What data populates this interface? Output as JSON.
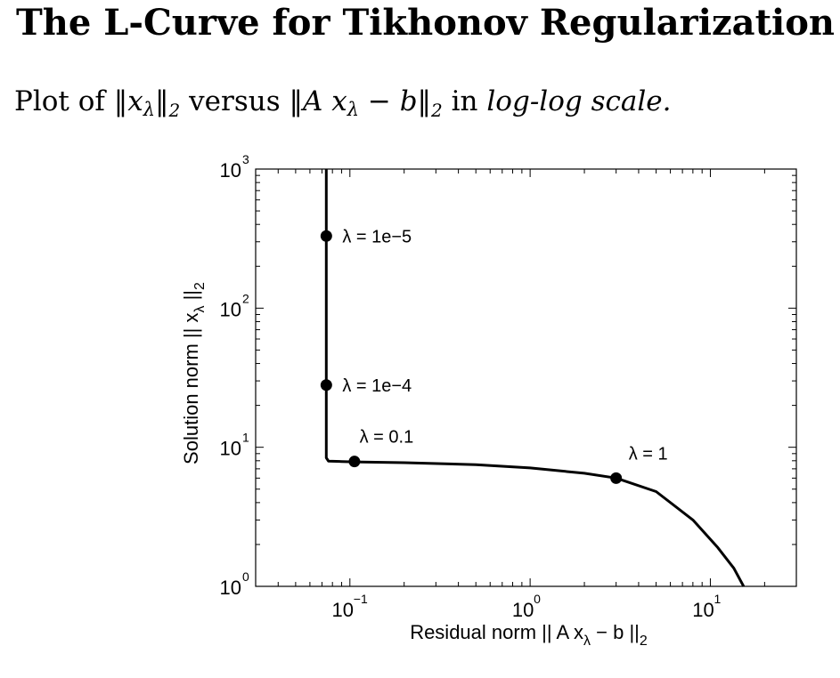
{
  "header": {
    "title": "The L-Curve for Tikhonov Regularization",
    "subtitle": {
      "prefix": "Plot of",
      "norm_x": "‖x",
      "lam1": "λ",
      "norm_x_close": "‖",
      "sub1": "2",
      "versus": "versus",
      "norm_ax": "‖A x",
      "lam2": "λ",
      "minus_b": " − b‖",
      "sub2": "2",
      "in": "in",
      "scale": "log-log scale."
    }
  },
  "chart_data": {
    "type": "line",
    "xscale": "log",
    "yscale": "log",
    "xlim": [
      0.03,
      30
    ],
    "ylim": [
      1,
      1000
    ],
    "xticks": [
      {
        "value": 0.1,
        "base": "10",
        "exp": "−1"
      },
      {
        "value": 1,
        "base": "10",
        "exp": "0"
      },
      {
        "value": 10,
        "base": "10",
        "exp": "1"
      }
    ],
    "yticks": [
      {
        "value": 1,
        "base": "10",
        "exp": "0"
      },
      {
        "value": 10,
        "base": "10",
        "exp": "1"
      },
      {
        "value": 100,
        "base": "10",
        "exp": "2"
      },
      {
        "value": 1000,
        "base": "10",
        "exp": "3"
      }
    ],
    "xlabel": {
      "text": "Residual norm || A x",
      "sub": "λ",
      "mid": " − b ||",
      "sub2": "2"
    },
    "ylabel": {
      "text": "Solution norm || x",
      "sub": "λ",
      "mid": " ||",
      "sub2": "2"
    },
    "grid": false,
    "series": [
      {
        "x": [
          0.074,
          0.074,
          0.074,
          0.074,
          0.076,
          0.09,
          0.106,
          0.2,
          0.5,
          1.0,
          2.0,
          3.0,
          5.0,
          8.0,
          11.0,
          13.5,
          15.3
        ],
        "y": [
          1000,
          200,
          40,
          8.4,
          7.95,
          7.9,
          7.85,
          7.75,
          7.5,
          7.1,
          6.5,
          6.0,
          4.8,
          3.0,
          1.9,
          1.35,
          1.0
        ]
      }
    ],
    "points": [
      {
        "x": 0.074,
        "y": 330,
        "label": "λ = 1e−5",
        "label_pos": "right"
      },
      {
        "x": 0.074,
        "y": 28,
        "label": "λ = 1e−4",
        "label_pos": "right"
      },
      {
        "x": 0.106,
        "y": 7.9,
        "label": "λ = 0.1",
        "label_pos": "above"
      },
      {
        "x": 3.0,
        "y": 6.0,
        "label": "λ = 1",
        "label_pos": "above"
      }
    ]
  }
}
